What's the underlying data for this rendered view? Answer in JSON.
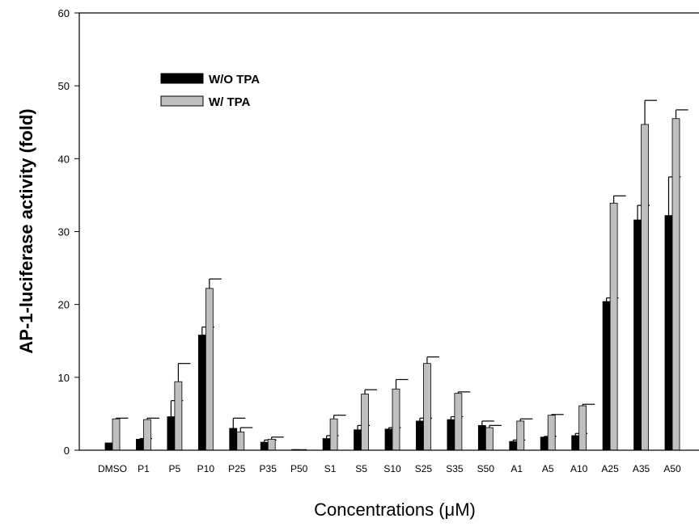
{
  "chart_data": {
    "type": "bar",
    "xlabel": "Concentrations (μM)",
    "ylabel": "AP-1-luciferase activity (fold)",
    "ylim": [
      0,
      60
    ],
    "yticks": [
      0,
      10,
      20,
      30,
      40,
      50,
      60
    ],
    "grid": false,
    "legend_position": "top-left",
    "categories": [
      "DMSO",
      "P1",
      "P5",
      "P10",
      "P25",
      "P35",
      "P50",
      "S1",
      "S5",
      "S10",
      "S25",
      "S35",
      "S50",
      "A1",
      "A5",
      "A10",
      "A25",
      "A35",
      "A50"
    ],
    "series": [
      {
        "name": "W/O TPA",
        "color": "#000000",
        "values": [
          1.0,
          1.5,
          4.6,
          15.8,
          3.0,
          1.1,
          0.1,
          1.6,
          2.8,
          2.9,
          4.0,
          4.2,
          3.4,
          1.2,
          1.8,
          2.0,
          20.4,
          31.6,
          32.2
        ],
        "errors": [
          0.0,
          0.1,
          2.2,
          1.1,
          1.4,
          0.3,
          0.0,
          0.4,
          0.6,
          0.2,
          0.4,
          0.4,
          0.6,
          0.2,
          0.1,
          0.3,
          0.5,
          2.0,
          5.3
        ]
      },
      {
        "name": "W/ TPA",
        "color": "#bfbfbf",
        "values": [
          4.3,
          4.2,
          9.4,
          22.2,
          2.5,
          1.5,
          0.0,
          4.3,
          7.7,
          8.4,
          11.9,
          7.8,
          3.1,
          4.0,
          4.8,
          6.1,
          33.9,
          44.7,
          45.5
        ],
        "errors": [
          0.1,
          0.2,
          2.5,
          1.3,
          0.6,
          0.3,
          0.0,
          0.5,
          0.6,
          1.3,
          0.9,
          0.2,
          0.3,
          0.3,
          0.1,
          0.2,
          1.0,
          3.3,
          1.2
        ]
      }
    ]
  }
}
